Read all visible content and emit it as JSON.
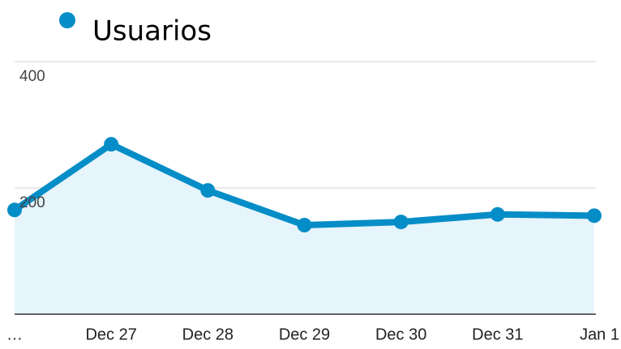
{
  "chart_data": {
    "type": "line",
    "categories": [
      "…",
      "Dec 27",
      "Dec 28",
      "Dec 29",
      "Dec 30",
      "Dec 31",
      "Jan 1"
    ],
    "series": [
      {
        "name": "Usuarios",
        "color": "#058dc7",
        "values": [
          165,
          269,
          196,
          141,
          146,
          158,
          156
        ]
      }
    ],
    "ylim": [
      0,
      400
    ],
    "yticks": [
      200,
      400
    ],
    "grid": true,
    "area": true,
    "legend": "top-left"
  }
}
